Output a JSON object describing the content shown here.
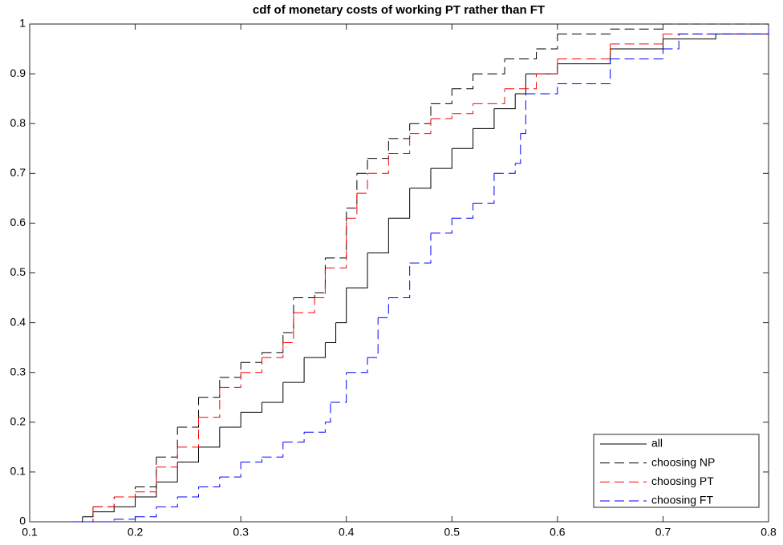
{
  "chart_data": {
    "type": "step",
    "title": "cdf of monetary costs of working PT rather than FT",
    "xlim": [
      0.1,
      0.8
    ],
    "xticks": [
      0.1,
      0.2,
      0.3,
      0.4,
      0.5,
      0.6,
      0.7,
      0.8
    ],
    "ylim": [
      0,
      1
    ],
    "yticks": [
      0,
      0.1,
      0.2,
      0.3,
      0.4,
      0.5,
      0.6,
      0.7,
      0.8,
      0.9,
      1
    ],
    "grid": false,
    "legend": "lower right",
    "series": [
      {
        "name": "all",
        "color": "#000000",
        "dash": "solid",
        "x": [
          0.14,
          0.15,
          0.16,
          0.18,
          0.2,
          0.22,
          0.24,
          0.26,
          0.28,
          0.3,
          0.32,
          0.34,
          0.36,
          0.38,
          0.39,
          0.4,
          0.42,
          0.44,
          0.46,
          0.48,
          0.5,
          0.52,
          0.54,
          0.56,
          0.57,
          0.6,
          0.65,
          0.7,
          0.75,
          0.8
        ],
        "values": [
          0,
          0.01,
          0.02,
          0.03,
          0.05,
          0.08,
          0.12,
          0.15,
          0.19,
          0.22,
          0.24,
          0.28,
          0.33,
          0.36,
          0.4,
          0.47,
          0.54,
          0.61,
          0.67,
          0.71,
          0.75,
          0.79,
          0.83,
          0.86,
          0.9,
          0.92,
          0.95,
          0.97,
          0.98,
          0.99
        ]
      },
      {
        "name": "choosing NP",
        "color": "#000000",
        "dash": "dashed",
        "x": [
          0.14,
          0.16,
          0.18,
          0.2,
          0.22,
          0.24,
          0.26,
          0.28,
          0.3,
          0.32,
          0.34,
          0.35,
          0.37,
          0.38,
          0.4,
          0.41,
          0.42,
          0.44,
          0.46,
          0.48,
          0.5,
          0.52,
          0.55,
          0.58,
          0.6,
          0.65,
          0.7,
          0.8
        ],
        "values": [
          0,
          0.03,
          0.05,
          0.07,
          0.13,
          0.19,
          0.25,
          0.29,
          0.32,
          0.34,
          0.38,
          0.45,
          0.46,
          0.53,
          0.63,
          0.7,
          0.73,
          0.77,
          0.8,
          0.84,
          0.87,
          0.9,
          0.93,
          0.95,
          0.98,
          0.99,
          1,
          1
        ]
      },
      {
        "name": "choosing PT",
        "color": "#ff0000",
        "dash": "dashed",
        "x": [
          0.14,
          0.16,
          0.18,
          0.2,
          0.22,
          0.24,
          0.26,
          0.28,
          0.3,
          0.32,
          0.34,
          0.35,
          0.37,
          0.38,
          0.4,
          0.41,
          0.42,
          0.44,
          0.46,
          0.48,
          0.5,
          0.52,
          0.55,
          0.58,
          0.6,
          0.65,
          0.7,
          0.8
        ],
        "values": [
          0,
          0.03,
          0.05,
          0.06,
          0.11,
          0.15,
          0.21,
          0.27,
          0.3,
          0.33,
          0.36,
          0.42,
          0.45,
          0.51,
          0.61,
          0.66,
          0.7,
          0.74,
          0.78,
          0.81,
          0.82,
          0.84,
          0.87,
          0.9,
          0.93,
          0.96,
          0.98,
          1
        ]
      },
      {
        "name": "choosing FT",
        "color": "#0000ff",
        "dash": "dashed",
        "x": [
          0.14,
          0.18,
          0.2,
          0.22,
          0.24,
          0.26,
          0.28,
          0.3,
          0.32,
          0.34,
          0.36,
          0.38,
          0.385,
          0.4,
          0.42,
          0.43,
          0.44,
          0.46,
          0.48,
          0.5,
          0.52,
          0.54,
          0.56,
          0.565,
          0.57,
          0.6,
          0.65,
          0.7,
          0.715,
          0.8
        ],
        "values": [
          0,
          0.005,
          0.01,
          0.03,
          0.05,
          0.07,
          0.09,
          0.12,
          0.13,
          0.16,
          0.18,
          0.2,
          0.24,
          0.3,
          0.33,
          0.41,
          0.45,
          0.52,
          0.58,
          0.61,
          0.64,
          0.7,
          0.72,
          0.78,
          0.86,
          0.88,
          0.93,
          0.95,
          0.98,
          0.99
        ]
      }
    ]
  }
}
